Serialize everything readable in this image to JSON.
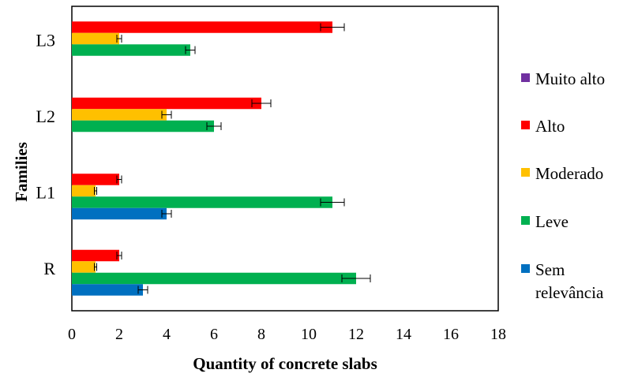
{
  "chart_data": {
    "type": "bar",
    "orientation": "horizontal",
    "xlabel": "Quantity of concrete slabs",
    "ylabel": "Families",
    "xlim": [
      0,
      18
    ],
    "xticks": [
      "0",
      "2",
      "4",
      "6",
      "8",
      "10",
      "12",
      "14",
      "16",
      "18"
    ],
    "categories": [
      "L3",
      "L2",
      "L1",
      "R"
    ],
    "series": [
      {
        "name": "Alto",
        "color": "#ff0000",
        "values": [
          11,
          8,
          2,
          2
        ],
        "errors": [
          0.5,
          0.4,
          0.1,
          0.1
        ]
      },
      {
        "name": "Moderado",
        "color": "#ffc000",
        "values": [
          2,
          4,
          1,
          1
        ],
        "errors": [
          0.1,
          0.2,
          0.05,
          0.05
        ]
      },
      {
        "name": "Leve",
        "color": "#00b050",
        "values": [
          5,
          6,
          11,
          12
        ],
        "errors": [
          0.2,
          0.3,
          0.5,
          0.6
        ]
      },
      {
        "name": "Sem relevância",
        "color": "#0070c0",
        "values": [
          null,
          null,
          4,
          3
        ],
        "errors": [
          null,
          null,
          0.2,
          0.2
        ]
      }
    ],
    "legend": {
      "placement": "right",
      "entries": [
        {
          "label": "Muito alto",
          "color": "#7030a0"
        },
        {
          "label": "Alto",
          "color": "#ff0000"
        },
        {
          "label": "Moderado",
          "color": "#ffc000"
        },
        {
          "label": "Leve",
          "color": "#00b050"
        },
        {
          "label": "Sem relevância",
          "color": "#0070c0"
        }
      ]
    },
    "grid": false
  }
}
